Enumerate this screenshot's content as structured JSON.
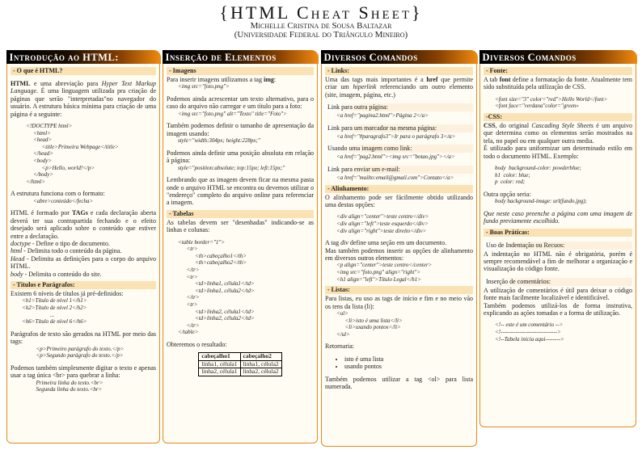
{
  "header": {
    "title": "{HTML Cheat Sheet}",
    "author": "Michelle Cristina de Sousa Baltazar",
    "institution": "(Universidade Federal do Triângulo Mineiro)"
  },
  "colors": {
    "accent": "#e48a1c",
    "section_bg": "#fbe2b4",
    "page_bg": "#fffcf3"
  },
  "columns": [
    {
      "title": "Introdução ao HTML:",
      "blocks": [
        {
          "type": "sh",
          "text": "- O que é HTML?"
        },
        {
          "type": "p",
          "lines": [
            [
              {
                "t": "HTML",
                "s": "b"
              },
              {
                "t": " e uma abreviação para "
              },
              {
                "t": "Hyper Text Markup Language",
                "s": "i"
              },
              {
                "t": ". É uma linguagem utilizada pra criação de páginas que serão \"interpretadas\"no navegador do usuário.  A estrutura básica mínima para criação de uma página é a seguinte:"
              }
            ]
          ]
        },
        {
          "type": "code",
          "lines": [
            "   <!DOCTYPE html>",
            "        <html>",
            "        <head>",
            "              <title>Primeira Webpage</title>",
            "        </head>",
            "        <body>",
            "              <p>Hello, world!</p>",
            "        </body>",
            "   </html>"
          ]
        },
        {
          "type": "p",
          "lines": [
            [
              {
                "t": "A estrutura funciona com o formato:"
              }
            ]
          ]
        },
        {
          "type": "code",
          "tight": true,
          "lines": [
            "        <abre>conteúdo</fecha>"
          ]
        },
        {
          "type": "p",
          "lines": [
            [
              {
                "t": "HTML é formado por "
              },
              {
                "t": "TAGs",
                "s": "b"
              },
              {
                "t": " e cada declaração aberta deverá ter sua contrapartida fechando e o efeito desejado será aplicado sobre o conteúdo que estiver entre a declaração."
              }
            ],
            [
              {
                "t": "doctype",
                "s": "i"
              },
              {
                "t": " - Define o tipo de documento."
              }
            ],
            [
              {
                "t": "html",
                "s": "i"
              },
              {
                "t": " - Delimita todo o conteúdo da página."
              }
            ],
            [
              {
                "t": "Head",
                "s": "i"
              },
              {
                "t": " - Delimita as definições para o corpo do arquivo HTML."
              }
            ],
            [
              {
                "t": "body",
                "s": "i"
              },
              {
                "t": " - Delimita o conteúdo do site."
              }
            ]
          ]
        },
        {
          "type": "sh",
          "text": "- Títulos e Parágrafos:"
        },
        {
          "type": "p",
          "first": true,
          "lines": [
            [
              {
                "t": "Existem 6 níveis de títulos já pré-definidos:"
              }
            ]
          ]
        },
        {
          "type": "code",
          "tight": true,
          "lines": [
            "<h1>Título de nível 1</h1>",
            "<h2>Título de nível 2</h2>",
            "                    ...",
            "<h6>Título de nível 6</h6>"
          ]
        },
        {
          "type": "p",
          "lines": [
            [
              {
                "t": "Parágrafos de texto são gerados na HTML por meio das tags:"
              }
            ]
          ]
        },
        {
          "type": "code",
          "tight": true,
          "lines": [
            "          <p>Primeiro parágrafo do texto.</p>",
            "          <p>Segundo parágrafo do texto.</p>"
          ]
        },
        {
          "type": "p",
          "lines": [
            [
              {
                "t": "Podemos também simplesmente digitar o texto e apenas usar a tag única <br> para quebrar a linha:"
              }
            ]
          ]
        },
        {
          "type": "code",
          "tight": true,
          "lines": [
            "          Primeira linha do texto.<br>",
            "          Segunda linha do texto.<br>"
          ]
        }
      ]
    },
    {
      "title": "Inserção de Elementos",
      "blocks": [
        {
          "type": "sh",
          "text": "- Imagens"
        },
        {
          "type": "p",
          "first": true,
          "lines": [
            [
              {
                "t": "Para inserir imagens utilizamos a tag "
              },
              {
                "t": "img",
                "s": "b"
              },
              {
                "t": ":"
              }
            ]
          ]
        },
        {
          "type": "code",
          "tight": true,
          "lines": [
            "<img src=\"foto.png\">"
          ]
        },
        {
          "type": "p",
          "lines": [
            [
              {
                "t": "Podemos ainda acrescentar um texto alternativo, para o caso do arquivo não carregar e um título para a foto:"
              }
            ]
          ]
        },
        {
          "type": "code",
          "tight": true,
          "lines": [
            "<img src=\"foto.png\" alt=\"Texto\" title=\"Foto\">"
          ]
        },
        {
          "type": "p",
          "lines": [
            [
              {
                "t": "Também podemos definir o tamanho de apresentação da imagem usando:"
              }
            ]
          ]
        },
        {
          "type": "code",
          "tight": true,
          "lines": [
            "style=\"width:304px; height:228px;\""
          ]
        },
        {
          "type": "p",
          "lines": [
            [
              {
                "t": "Podemos ainda definir uma posição absoluta em relação à página:"
              }
            ]
          ]
        },
        {
          "type": "code",
          "tight": true,
          "lines": [
            "style=\"position:absolute; top:15px; left:15px;\""
          ]
        },
        {
          "type": "p",
          "lines": [
            [
              {
                "t": "Lembrando que as imagem devem ficar na mesma pasta onde o arquivo HTML se encontra ou devemos utilizar o \"endereço\" completo do arquivo online para referenciar a imagem."
              }
            ]
          ]
        },
        {
          "type": "sh",
          "text": "- Tabelas"
        },
        {
          "type": "p",
          "first": true,
          "lines": [
            [
              {
                "t": "As tabelas devem ser \"desenhadas\" indicando-se as linhas e colunas:"
              }
            ]
          ]
        },
        {
          "type": "code",
          "lines": [
            "<table border=\"1\">",
            "      <tr>",
            "            <th>cabeçalho1</th>",
            "            <th>cabeçalho2</th>",
            "      </tr>",
            "      <tr>",
            "            <td>linha1, célula1</td>",
            "            <td>linha1, célula2</td>",
            "      </tr>",
            "      <tr>",
            "            <td>linha2, célula1</td>",
            "            <td>linha2, célula2</td>",
            "      </tr>",
            "</table>"
          ]
        },
        {
          "type": "p",
          "lines": [
            [
              {
                "t": "Obteremos o resultado:"
              }
            ]
          ]
        },
        {
          "type": "table",
          "headers": [
            "cabeçalho1",
            "cabeçalho2"
          ],
          "rows": [
            [
              "linha1, célula1",
              "linha1, célula2"
            ],
            [
              "linha2, célula1",
              "linha2, célula2"
            ]
          ]
        }
      ]
    },
    {
      "title": "Diversos Comandos",
      "blocks": [
        {
          "type": "sh",
          "text": "- Links:"
        },
        {
          "type": "p",
          "first": true,
          "lines": [
            [
              {
                "t": "Uma das tags mais importantes é a "
              },
              {
                "t": "href",
                "s": "b"
              },
              {
                "t": " que permite criar um "
              },
              {
                "t": "hiperlink",
                "s": "i"
              },
              {
                "t": " referenciando um outro elemento (site, imagem, página, etc.)"
              }
            ]
          ]
        },
        {
          "type": "sub",
          "text": "Link para outra página:"
        },
        {
          "type": "code",
          "tight": true,
          "lines": [
            "<a href=\"pagina2.html\">Página 2</a>"
          ]
        },
        {
          "type": "sub",
          "text": "Link para um marcador na mesma página:"
        },
        {
          "type": "code",
          "tight": true,
          "lines": [
            "<a href=\"#paragrafo3\">Ir para o parágrafo 3</a>"
          ]
        },
        {
          "type": "sub",
          "text": "Usando uma imagem como link:"
        },
        {
          "type": "code",
          "tight": true,
          "lines": [
            "<a href=\"pag2.html\"><img src=\"botao.jpg\"></a>"
          ]
        },
        {
          "type": "sub",
          "text": "Link para enviar um e-mail:"
        },
        {
          "type": "code",
          "tight": true,
          "lines": [
            "<a href=\"mailto:email@gmail.com\">Contato</a>"
          ]
        },
        {
          "type": "sh",
          "text": "- Alinhamento:"
        },
        {
          "type": "p",
          "first": true,
          "lines": [
            [
              {
                "t": "O alinhamento pode ser fácilmente obtido utilizando uma destas opções:"
              }
            ]
          ]
        },
        {
          "type": "code",
          "lines": [
            "<div align=\"center\">teste centro</div>",
            "<div align=\"left\">teste esquerdo</div>",
            "<div align=\"right\">teste direito</div>"
          ]
        },
        {
          "type": "p",
          "lines": [
            [
              {
                "t": "A tag "
              },
              {
                "t": "div",
                "s": "i"
              },
              {
                "t": " define uma seção em um documento."
              }
            ],
            [
              {
                "t": "Mas também podemos inserir as opções de alinhamento em diversos outros elementos:"
              }
            ]
          ]
        },
        {
          "type": "code",
          "tight": true,
          "lines": [
            "<p align=\"center\">teste centro</center>",
            "<img src=\"foto.png\" align=\"right\">",
            "<h1 align=\"left\">Título Legal</h1>"
          ]
        },
        {
          "type": "sh",
          "text": "- Listas:"
        },
        {
          "type": "p",
          "first": true,
          "lines": [
            [
              {
                "t": "Para listas, eu uso as tags de início e fim e no meio vão os tens da lista (li):"
              }
            ]
          ]
        },
        {
          "type": "code",
          "tight": true,
          "lines": [
            "<ul>",
            "      <li>isto é uma lista</li>",
            "      <li>usando pontos</li>",
            "</ul>"
          ]
        },
        {
          "type": "p",
          "lines": [
            [
              {
                "t": "Retornaria:"
              }
            ]
          ]
        },
        {
          "type": "list",
          "items": [
            "isto é uma lista",
            "usando pontos"
          ]
        },
        {
          "type": "p",
          "lines": [
            [
              {
                "t": "Também podemos utilizar a tag <ol> para lista numerada."
              }
            ]
          ]
        }
      ]
    },
    {
      "title": "Diversos Comandos",
      "blocks": [
        {
          "type": "sh",
          "text": "- Fonte:"
        },
        {
          "type": "p",
          "first": true,
          "lines": [
            [
              {
                "t": "A tab "
              },
              {
                "t": "font",
                "s": "b"
              },
              {
                "t": " define a formatação da fonte.  Atualmente tem sido substituída pela utilização de CSS."
              }
            ]
          ]
        },
        {
          "type": "code",
          "lines": [
            "<font size=\"3\" color=\"red\">Hello World</font>",
            "<font face=\"verdana\"color=\"green»"
          ]
        },
        {
          "type": "sh",
          "text": "-CSS:"
        },
        {
          "type": "p",
          "first": true,
          "lines": [
            [
              {
                "t": "CSS",
                "s": "b"
              },
              {
                "t": ", do original "
              },
              {
                "t": "Cascading Style Sheets",
                "s": "i"
              },
              {
                "t": " é um arquivo que determina como os elementos serão mostrados na tela, no papel ou em qualquer outra media."
              }
            ],
            [
              {
                "t": "É utilizado para uniformizar um determinado estilo em todo o documento HTML. Exemplo:"
              }
            ]
          ]
        },
        {
          "type": "code",
          "lines": [
            "body  background-color: powderblue;",
            "h1  color: blue;",
            "p  color: red;"
          ]
        },
        {
          "type": "p",
          "lines": [
            [
              {
                "t": "Outra opção seria:"
              }
            ]
          ]
        },
        {
          "type": "code",
          "tight": true,
          "lines": [
            "body background-image: url(fundo.jpg);"
          ]
        },
        {
          "type": "p",
          "lines": [
            [
              {
                "t": "Que neste caso preenche a página com uma imagem de fundo previamente escolhido.",
                "s": "i"
              }
            ]
          ]
        },
        {
          "type": "sh",
          "text": "- Boas Práticas:"
        },
        {
          "type": "sub",
          "text": "Uso de Indentação ou Recuos:"
        },
        {
          "type": "p",
          "first": true,
          "lines": [
            [
              {
                "t": "A indentação no HTML não é obrigatória, porém é sempre recomendável a fim de melhorar a organização e visualização do código fonte."
              }
            ]
          ]
        },
        {
          "type": "sub",
          "text": "Inserção de comentários:"
        },
        {
          "type": "p",
          "first": true,
          "lines": [
            [
              {
                "t": "A utilização de comentários é útil para deixar o código fonte mais facilmente localizável e identificável."
              }
            ],
            [
              {
                "t": "Também podemos utilizá-los de forma instrutiva, explicando as ações tomadas e a forma de utilização."
              }
            ]
          ]
        },
        {
          "type": "code",
          "lines": [
            "<!-- este é um comentário -->",
            "<!------------------------------>",
            "<!--Tabela inicia aqui-------->"
          ]
        }
      ]
    }
  ]
}
